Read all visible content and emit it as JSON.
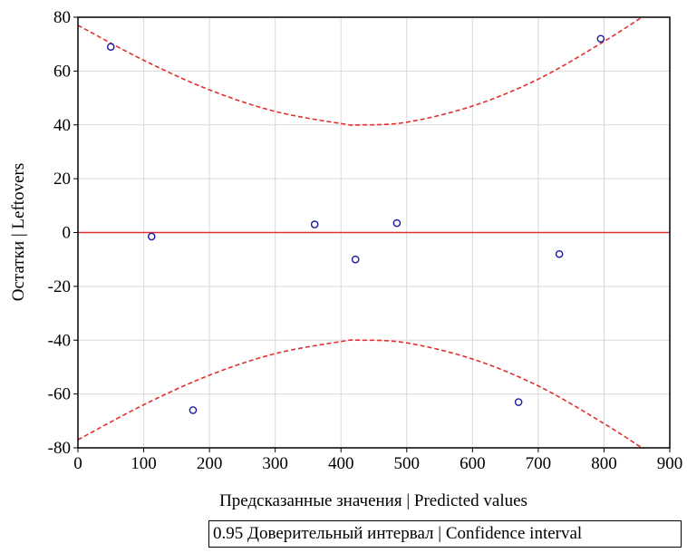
{
  "chart_data": {
    "type": "scatter",
    "title": "",
    "xlabel": "Предсказанные значения | Predicted values",
    "ylabel": "Остатки | Leftovers",
    "xlim": [
      0,
      900
    ],
    "ylim": [
      -80,
      80
    ],
    "xticks": [
      0,
      100,
      200,
      300,
      400,
      500,
      600,
      700,
      800,
      900
    ],
    "yticks": [
      -80,
      -60,
      -40,
      -20,
      0,
      20,
      40,
      60,
      80
    ],
    "grid": true,
    "series": [
      {
        "x": [
          50,
          112,
          175,
          360,
          422,
          485,
          670,
          732,
          795
        ],
        "y": [
          69,
          -1.5,
          -66,
          3,
          -10,
          3.5,
          -63,
          -8,
          72
        ],
        "color": "#1a1aa0",
        "marker": "circle-open"
      }
    ],
    "reference_line": {
      "y": 0,
      "color": "#e03030"
    },
    "confidence_band": {
      "label": "0.95 Доверительный интервал | Confidence interval",
      "color": "#e03030",
      "style": "dashed",
      "x": [
        0,
        100,
        200,
        300,
        400,
        430,
        500,
        600,
        700,
        800,
        870
      ],
      "upper": [
        77,
        64,
        53,
        45,
        40.5,
        40,
        41,
        47,
        57,
        71,
        82
      ],
      "lower": [
        -77,
        -64,
        -53,
        -45,
        -40.5,
        -40,
        -41,
        -47,
        -57,
        -71,
        -82
      ]
    },
    "legend_position": "bottom-right"
  }
}
